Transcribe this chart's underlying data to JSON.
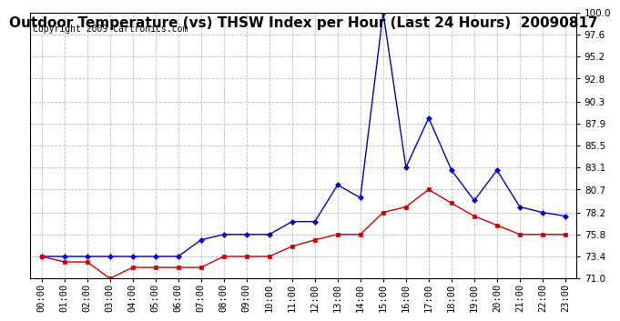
{
  "title": "Outdoor Temperature (vs) THSW Index per Hour (Last 24 Hours)  20090817",
  "copyright": "Copyright 2009 Cartronics.com",
  "hours": [
    "00:00",
    "01:00",
    "02:00",
    "03:00",
    "04:00",
    "05:00",
    "06:00",
    "07:00",
    "08:00",
    "09:00",
    "10:00",
    "11:00",
    "12:00",
    "13:00",
    "14:00",
    "15:00",
    "16:00",
    "17:00",
    "18:00",
    "19:00",
    "20:00",
    "21:00",
    "22:00",
    "23:00"
  ],
  "temp": [
    73.4,
    72.8,
    72.8,
    71.0,
    72.2,
    72.2,
    72.2,
    72.2,
    73.4,
    73.4,
    73.4,
    74.5,
    75.2,
    75.8,
    75.8,
    78.2,
    78.8,
    80.7,
    79.2,
    77.8,
    76.8,
    75.8,
    75.8,
    75.8
  ],
  "thsw": [
    73.4,
    73.4,
    73.4,
    73.4,
    73.4,
    73.4,
    73.4,
    75.2,
    75.8,
    75.8,
    75.8,
    77.2,
    77.2,
    81.2,
    79.8,
    100.0,
    83.1,
    88.5,
    82.8,
    79.5,
    82.8,
    78.8,
    78.2,
    77.8
  ],
  "ylim": [
    71.0,
    100.0
  ],
  "yticks": [
    71.0,
    73.4,
    75.8,
    78.2,
    80.7,
    83.1,
    85.5,
    87.9,
    90.3,
    92.8,
    95.2,
    97.6,
    100.0
  ],
  "bg_color": "#ffffff",
  "plot_bg": "#ffffff",
  "grid_color": "#bbbbbb",
  "temp_color": "#cc0000",
  "thsw_color": "#0000cc",
  "title_fontsize": 11,
  "copyright_fontsize": 7,
  "tick_fontsize": 7.5,
  "marker_size": 3
}
